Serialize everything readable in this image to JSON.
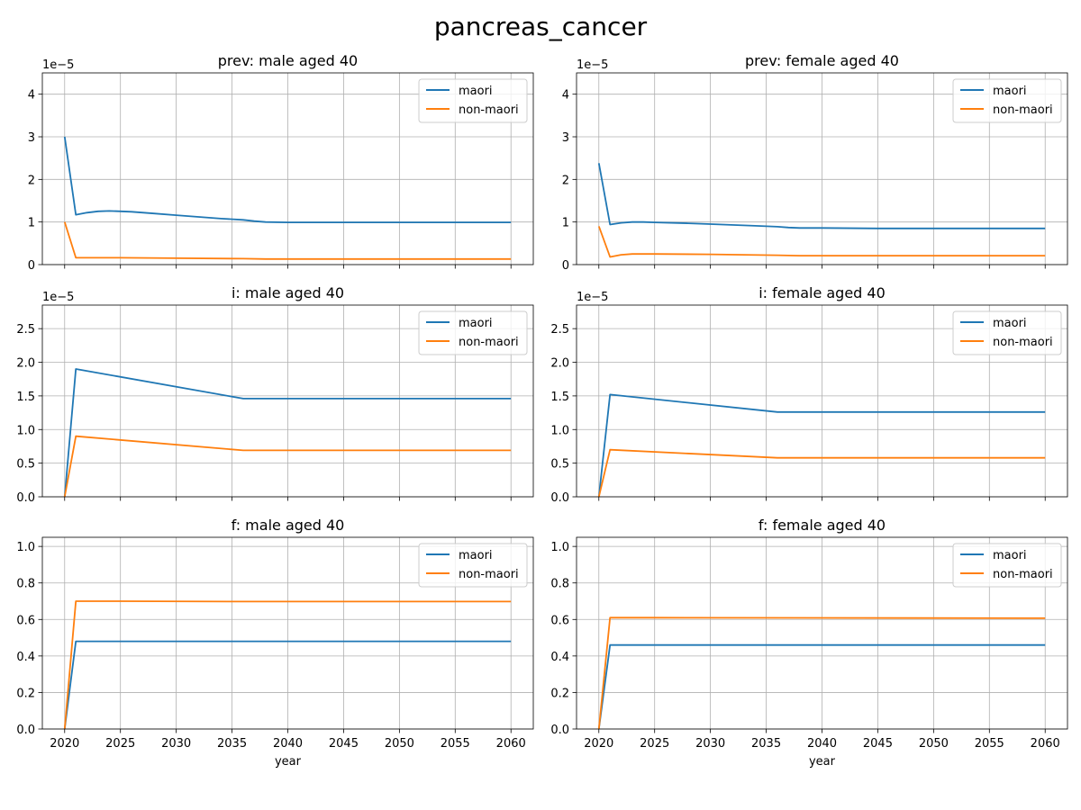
{
  "figure": {
    "title": "pancreas_cancer"
  },
  "colors": {
    "maori": "#1f77b4",
    "non_maori": "#ff7f0e",
    "grid": "#b0b0b0",
    "axes": "#000000"
  },
  "chart_data": [
    {
      "type": "line",
      "title": "prev: male aged 40",
      "xlabel": "",
      "ylabel": "",
      "offset_text": "1e−5",
      "xlim": [
        2018,
        2062
      ],
      "ylim": [
        0,
        4.5
      ],
      "xticks": [
        2020,
        2025,
        2030,
        2035,
        2040,
        2045,
        2050,
        2055,
        2060
      ],
      "show_xtick_labels": false,
      "yticks": [
        0,
        1,
        2,
        3,
        4
      ],
      "ytick_labels": [
        "0",
        "1",
        "2",
        "3",
        "4"
      ],
      "grid": true,
      "legend": "top-right",
      "series": [
        {
          "name": "maori",
          "color": "#1f77b4",
          "x": [
            2020,
            2021,
            2022,
            2023,
            2024,
            2025,
            2026,
            2028,
            2030,
            2032,
            2034,
            2036,
            2037,
            2038,
            2040,
            2045,
            2050,
            2055,
            2060
          ],
          "y": [
            3.0,
            1.17,
            1.22,
            1.25,
            1.26,
            1.25,
            1.24,
            1.2,
            1.16,
            1.12,
            1.08,
            1.05,
            1.02,
            1.0,
            0.99,
            0.99,
            0.99,
            0.99,
            0.99
          ]
        },
        {
          "name": "non-maori",
          "color": "#ff7f0e",
          "x": [
            2020,
            2021,
            2025,
            2030,
            2036,
            2038,
            2040,
            2045,
            2050,
            2055,
            2060
          ],
          "y": [
            1.0,
            0.16,
            0.16,
            0.15,
            0.14,
            0.13,
            0.13,
            0.13,
            0.13,
            0.13,
            0.13
          ]
        }
      ]
    },
    {
      "type": "line",
      "title": "prev: female aged 40",
      "xlabel": "",
      "ylabel": "",
      "offset_text": "1e−5",
      "xlim": [
        2018,
        2062
      ],
      "ylim": [
        0,
        4.5
      ],
      "xticks": [
        2020,
        2025,
        2030,
        2035,
        2040,
        2045,
        2050,
        2055,
        2060
      ],
      "show_xtick_labels": false,
      "yticks": [
        0,
        1,
        2,
        3,
        4
      ],
      "ytick_labels": [
        "0",
        "1",
        "2",
        "3",
        "4"
      ],
      "grid": true,
      "legend": "top-right",
      "series": [
        {
          "name": "maori",
          "color": "#1f77b4",
          "x": [
            2020,
            2021,
            2022,
            2023,
            2024,
            2025,
            2028,
            2030,
            2034,
            2036,
            2037,
            2038,
            2040,
            2045,
            2050,
            2055,
            2060
          ],
          "y": [
            2.38,
            0.94,
            0.98,
            1.0,
            1.0,
            0.99,
            0.97,
            0.95,
            0.91,
            0.89,
            0.87,
            0.86,
            0.86,
            0.85,
            0.85,
            0.85,
            0.85
          ]
        },
        {
          "name": "non-maori",
          "color": "#ff7f0e",
          "x": [
            2020,
            2021,
            2022,
            2023,
            2025,
            2030,
            2036,
            2038,
            2040,
            2045,
            2050,
            2055,
            2060
          ],
          "y": [
            0.9,
            0.18,
            0.23,
            0.25,
            0.25,
            0.24,
            0.22,
            0.21,
            0.21,
            0.21,
            0.21,
            0.21,
            0.21
          ]
        }
      ]
    },
    {
      "type": "line",
      "title": "i: male aged 40",
      "xlabel": "",
      "ylabel": "",
      "offset_text": "1e−5",
      "xlim": [
        2018,
        2062
      ],
      "ylim": [
        0,
        2.85
      ],
      "xticks": [
        2020,
        2025,
        2030,
        2035,
        2040,
        2045,
        2050,
        2055,
        2060
      ],
      "show_xtick_labels": false,
      "yticks": [
        0,
        0.5,
        1.0,
        1.5,
        2.0,
        2.5
      ],
      "ytick_labels": [
        "0.0",
        "0.5",
        "1.0",
        "1.5",
        "2.0",
        "2.5"
      ],
      "grid": true,
      "legend": "top-right",
      "series": [
        {
          "name": "maori",
          "color": "#1f77b4",
          "x": [
            2020,
            2021,
            2036,
            2060
          ],
          "y": [
            0.0,
            1.9,
            1.46,
            1.46
          ]
        },
        {
          "name": "non-maori",
          "color": "#ff7f0e",
          "x": [
            2020,
            2021,
            2036,
            2060
          ],
          "y": [
            0.0,
            0.9,
            0.69,
            0.69
          ]
        }
      ]
    },
    {
      "type": "line",
      "title": "i: female aged 40",
      "xlabel": "",
      "ylabel": "",
      "offset_text": "1e−5",
      "xlim": [
        2018,
        2062
      ],
      "ylim": [
        0,
        2.85
      ],
      "xticks": [
        2020,
        2025,
        2030,
        2035,
        2040,
        2045,
        2050,
        2055,
        2060
      ],
      "show_xtick_labels": false,
      "yticks": [
        0,
        0.5,
        1.0,
        1.5,
        2.0,
        2.5
      ],
      "ytick_labels": [
        "0.0",
        "0.5",
        "1.0",
        "1.5",
        "2.0",
        "2.5"
      ],
      "grid": true,
      "legend": "top-right",
      "series": [
        {
          "name": "maori",
          "color": "#1f77b4",
          "x": [
            2020,
            2021,
            2036,
            2060
          ],
          "y": [
            0.0,
            1.52,
            1.26,
            1.26
          ]
        },
        {
          "name": "non-maori",
          "color": "#ff7f0e",
          "x": [
            2020,
            2021,
            2036,
            2060
          ],
          "y": [
            0.0,
            0.7,
            0.58,
            0.58
          ]
        }
      ]
    },
    {
      "type": "line",
      "title": "f: male aged 40",
      "xlabel": "year",
      "ylabel": "",
      "offset_text": "",
      "xlim": [
        2018,
        2062
      ],
      "ylim": [
        0,
        1.05
      ],
      "xticks": [
        2020,
        2025,
        2030,
        2035,
        2040,
        2045,
        2050,
        2055,
        2060
      ],
      "show_xtick_labels": true,
      "yticks": [
        0,
        0.2,
        0.4,
        0.6,
        0.8,
        1.0
      ],
      "ytick_labels": [
        "0.0",
        "0.2",
        "0.4",
        "0.6",
        "0.8",
        "1.0"
      ],
      "grid": true,
      "legend": "top-right",
      "series": [
        {
          "name": "maori",
          "color": "#1f77b4",
          "x": [
            2020,
            2021,
            2025,
            2060
          ],
          "y": [
            0.0,
            0.48,
            0.48,
            0.48
          ]
        },
        {
          "name": "non-maori",
          "color": "#ff7f0e",
          "x": [
            2020,
            2021,
            2025,
            2035,
            2060
          ],
          "y": [
            0.0,
            0.7,
            0.7,
            0.698,
            0.698
          ]
        }
      ]
    },
    {
      "type": "line",
      "title": "f: female aged 40",
      "xlabel": "year",
      "ylabel": "",
      "offset_text": "",
      "xlim": [
        2018,
        2062
      ],
      "ylim": [
        0,
        1.05
      ],
      "xticks": [
        2020,
        2025,
        2030,
        2035,
        2040,
        2045,
        2050,
        2055,
        2060
      ],
      "show_xtick_labels": true,
      "yticks": [
        0,
        0.2,
        0.4,
        0.6,
        0.8,
        1.0
      ],
      "ytick_labels": [
        "0.0",
        "0.2",
        "0.4",
        "0.6",
        "0.8",
        "1.0"
      ],
      "grid": true,
      "legend": "top-right",
      "series": [
        {
          "name": "maori",
          "color": "#1f77b4",
          "x": [
            2020,
            2021,
            2025,
            2060
          ],
          "y": [
            0.0,
            0.46,
            0.46,
            0.46
          ]
        },
        {
          "name": "non-maori",
          "color": "#ff7f0e",
          "x": [
            2020,
            2021,
            2025,
            2060
          ],
          "y": [
            0.0,
            0.61,
            0.61,
            0.607
          ]
        }
      ]
    }
  ]
}
